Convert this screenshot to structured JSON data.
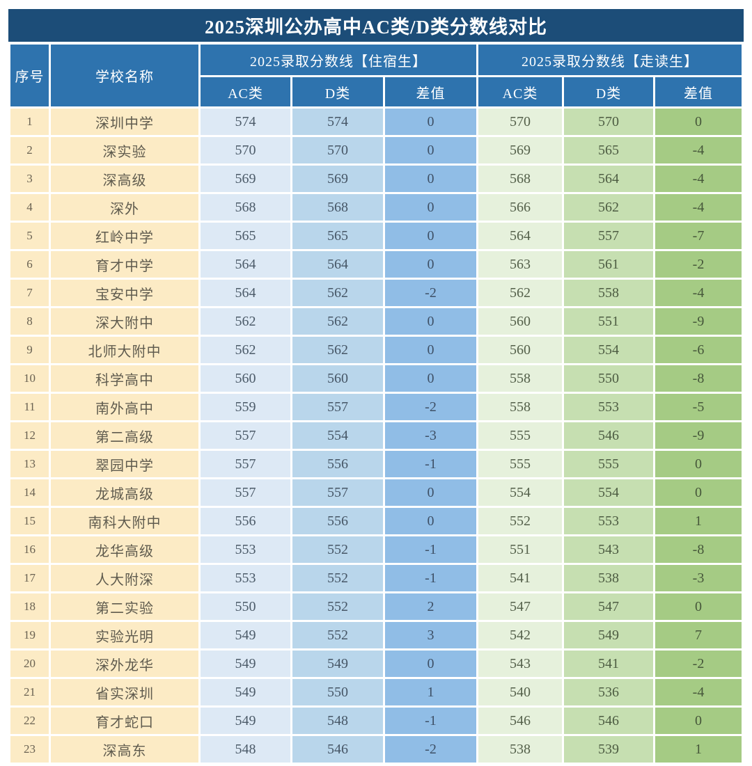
{
  "title": "2025深圳公办高中AC类/D类分数线对比",
  "table": {
    "headers": {
      "no": "序号",
      "school": "学校名称",
      "group_boarding": "2025录取分数线【住宿生】",
      "group_day": "2025录取分数线【走读生】",
      "ac": "AC类",
      "d": "D类",
      "diff": "差值"
    }
  },
  "colors": {
    "title_bar": "#1c4d78",
    "header": "#2e73ae",
    "index_school_bg": "#fcebc5",
    "boarding_ac_bg": "#dde9f5",
    "boarding_d_bg": "#b9d6eb",
    "boarding_diff_bg": "#90bde6",
    "day_ac_bg": "#e6f1dc",
    "day_d_bg": "#c6dfb1",
    "day_diff_bg": "#a5cb84"
  },
  "chart_data": {
    "type": "table",
    "title": "2025深圳公办高中AC类/D类分数线对比",
    "column_groups": [
      "2025录取分数线【住宿生】",
      "2025录取分数线【走读生】"
    ],
    "columns": [
      "序号",
      "学校名称",
      "住宿生AC类",
      "住宿生D类",
      "住宿生差值",
      "走读生AC类",
      "走读生D类",
      "走读生差值"
    ],
    "rows": [
      [
        1,
        "深圳中学",
        574,
        574,
        0,
        570,
        570,
        0
      ],
      [
        2,
        "深实验",
        570,
        570,
        0,
        569,
        565,
        -4
      ],
      [
        3,
        "深高级",
        569,
        569,
        0,
        568,
        564,
        -4
      ],
      [
        4,
        "深外",
        568,
        568,
        0,
        566,
        562,
        -4
      ],
      [
        5,
        "红岭中学",
        565,
        565,
        0,
        564,
        557,
        -7
      ],
      [
        6,
        "育才中学",
        564,
        564,
        0,
        563,
        561,
        -2
      ],
      [
        7,
        "宝安中学",
        564,
        562,
        -2,
        562,
        558,
        -4
      ],
      [
        8,
        "深大附中",
        562,
        562,
        0,
        560,
        551,
        -9
      ],
      [
        9,
        "北师大附中",
        562,
        562,
        0,
        560,
        554,
        -6
      ],
      [
        10,
        "科学高中",
        560,
        560,
        0,
        558,
        550,
        -8
      ],
      [
        11,
        "南外高中",
        559,
        557,
        -2,
        558,
        553,
        -5
      ],
      [
        12,
        "第二高级",
        557,
        554,
        -3,
        555,
        546,
        -9
      ],
      [
        13,
        "翠园中学",
        557,
        556,
        -1,
        555,
        555,
        0
      ],
      [
        14,
        "龙城高级",
        557,
        557,
        0,
        554,
        554,
        0
      ],
      [
        15,
        "南科大附中",
        556,
        556,
        0,
        552,
        553,
        1
      ],
      [
        16,
        "龙华高级",
        553,
        552,
        -1,
        551,
        543,
        -8
      ],
      [
        17,
        "人大附深",
        553,
        552,
        -1,
        541,
        538,
        -3
      ],
      [
        18,
        "第二实验",
        550,
        552,
        2,
        547,
        547,
        0
      ],
      [
        19,
        "实验光明",
        549,
        552,
        3,
        542,
        549,
        7
      ],
      [
        20,
        "深外龙华",
        549,
        549,
        0,
        543,
        541,
        -2
      ],
      [
        21,
        "省实深圳",
        549,
        550,
        1,
        540,
        536,
        -4
      ],
      [
        22,
        "育才蛇口",
        549,
        548,
        -1,
        546,
        546,
        0
      ],
      [
        23,
        "深高东",
        548,
        546,
        -2,
        538,
        539,
        1
      ]
    ]
  }
}
